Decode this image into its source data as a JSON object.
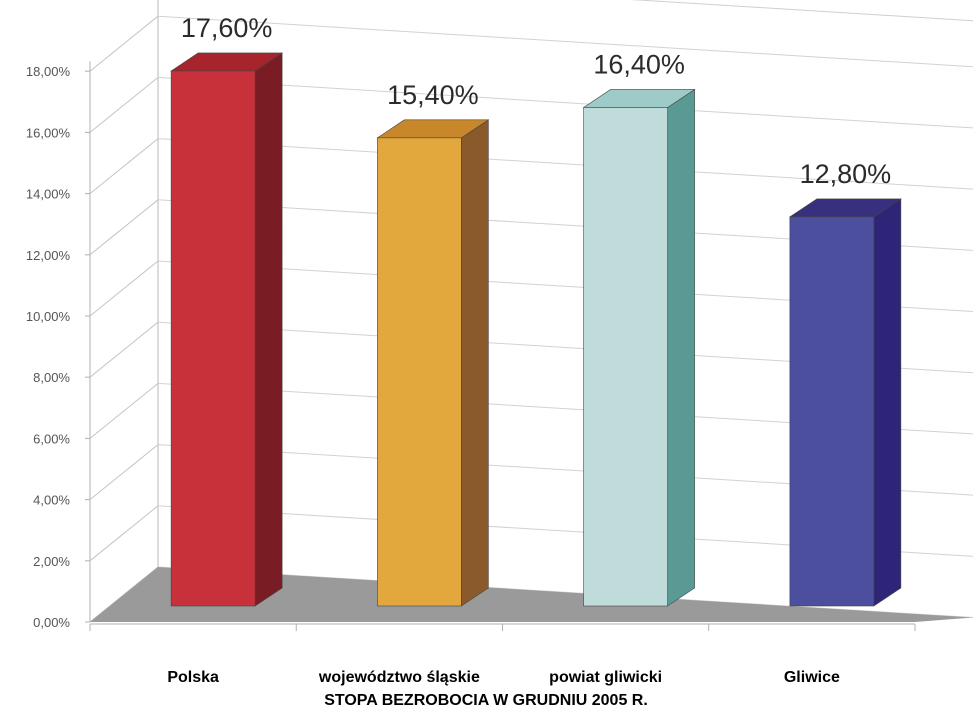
{
  "chart_data": {
    "type": "bar",
    "title": "STOPA BEZROBOCIA W GRUDNIU 2005 R.",
    "categories": [
      "Polska",
      "województwo śląskie",
      "powiat gliwicki",
      "Gliwice"
    ],
    "values": [
      17.6,
      15.4,
      16.4,
      12.8
    ],
    "value_labels": [
      "17,60%",
      "15,40%",
      "16,40%",
      "12,80%"
    ],
    "y_ticks": [
      0,
      2,
      4,
      6,
      8,
      10,
      12,
      14,
      16,
      18
    ],
    "y_tick_labels": [
      "0,00%",
      "2,00%",
      "4,00%",
      "6,00%",
      "8,00%",
      "10,00%",
      "12,00%",
      "14,00%",
      "16,00%",
      "18,00%"
    ],
    "ylim": [
      0,
      18
    ],
    "xlabel": "",
    "ylabel": "",
    "grid": true,
    "style": "3d",
    "colors": [
      {
        "front": "#c8303a",
        "side": "#7a1c24",
        "top": "#a8242c"
      },
      {
        "front": "#e2a83e",
        "side": "#8a5a2a",
        "top": "#c8872a"
      },
      {
        "front": "#bfdcdb",
        "side": "#5a9a94",
        "top": "#9ecac7"
      },
      {
        "front": "#4b4f9e",
        "side": "#2e2478",
        "top": "#36307e"
      }
    ],
    "floor_color": "#9a9a9a"
  }
}
